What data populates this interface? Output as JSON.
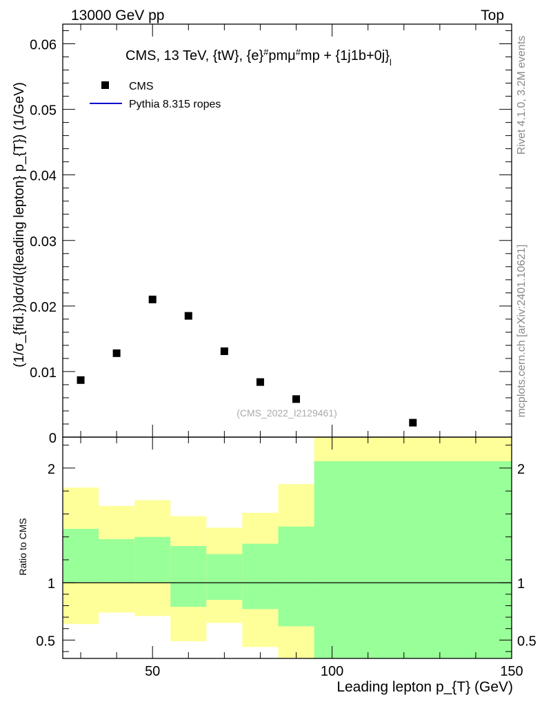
{
  "header": {
    "left": "13000 GeV pp",
    "right": "Top"
  },
  "side": {
    "rivet": "Rivet 4.1.0,  3.2M events",
    "mcplots": "mcplots.cern.ch [arXiv:2401.10621]"
  },
  "chart_data": [
    {
      "type": "scatter",
      "title": "CMS, 13 TeV, {tW}, {e}#pmμ#mp + {1j1b+0j}",
      "title_suffix": "l",
      "ylabel": "(1/σ_{fid.})dσ/d({leading lepton} p_{T}) (1/GeV)",
      "xlim": [
        25,
        150
      ],
      "ylim": [
        0,
        0.063
      ],
      "yticks": [
        0,
        0.01,
        0.02,
        0.03,
        0.04,
        0.05,
        0.06
      ],
      "ytick_labels": [
        "0",
        "0.01",
        "0.02",
        "0.03",
        "0.04",
        "0.05",
        "0.06"
      ],
      "watermark": "(CMS_2022_I2129461)",
      "legend": [
        {
          "name": "CMS",
          "marker": "square",
          "color": "#000000"
        },
        {
          "name": "Pythia 8.315 ropes",
          "marker": "line",
          "color": "#0000cc"
        }
      ],
      "series": [
        {
          "name": "CMS",
          "x": [
            30,
            40,
            50,
            60,
            70,
            80,
            90,
            122.5
          ],
          "y": [
            0.0087,
            0.0128,
            0.021,
            0.0185,
            0.0131,
            0.0084,
            0.0058,
            0.0022
          ]
        }
      ]
    },
    {
      "type": "area",
      "ylabel": "Ratio to CMS",
      "xlabel": "Leading lepton p_{T} (GeV)",
      "xlim": [
        25,
        150
      ],
      "ylim": [
        0.34,
        2.27
      ],
      "xticks": [
        50,
        100,
        150
      ],
      "yticks": [
        0.5,
        1,
        2
      ],
      "ytick_labels": [
        "0.5",
        "1",
        "2"
      ],
      "reference_line": 1,
      "bins": [
        {
          "lo": 25,
          "hi": 35,
          "y_lo": 0.64,
          "y_hi": 1.83,
          "g_lo": 1,
          "g_hi": 1.47
        },
        {
          "lo": 35,
          "hi": 45,
          "y_lo": 0.74,
          "y_hi": 1.67,
          "g_lo": 1,
          "g_hi": 1.38
        },
        {
          "lo": 45,
          "hi": 55,
          "y_lo": 0.71,
          "y_hi": 1.72,
          "g_lo": 1,
          "g_hi": 1.4
        },
        {
          "lo": 55,
          "hi": 65,
          "y_lo": 0.49,
          "y_hi": 1.58,
          "g_lo": 0.79,
          "g_hi": 1.32
        },
        {
          "lo": 65,
          "hi": 75,
          "y_lo": 0.65,
          "y_hi": 1.48,
          "g_lo": 0.85,
          "g_hi": 1.25
        },
        {
          "lo": 75,
          "hi": 85,
          "y_lo": 0.44,
          "y_hi": 1.61,
          "g_lo": 0.77,
          "g_hi": 1.34
        },
        {
          "lo": 85,
          "hi": 95,
          "y_lo": 0.34,
          "y_hi": 1.86,
          "g_lo": 0.62,
          "g_hi": 1.49
        },
        {
          "lo": 95,
          "hi": 150,
          "y_lo": 0.34,
          "y_hi": 2.27,
          "g_lo": 0.34,
          "g_hi": 2.06
        }
      ],
      "colors": {
        "outer": "#ffff99",
        "inner": "#99ff99"
      }
    }
  ]
}
